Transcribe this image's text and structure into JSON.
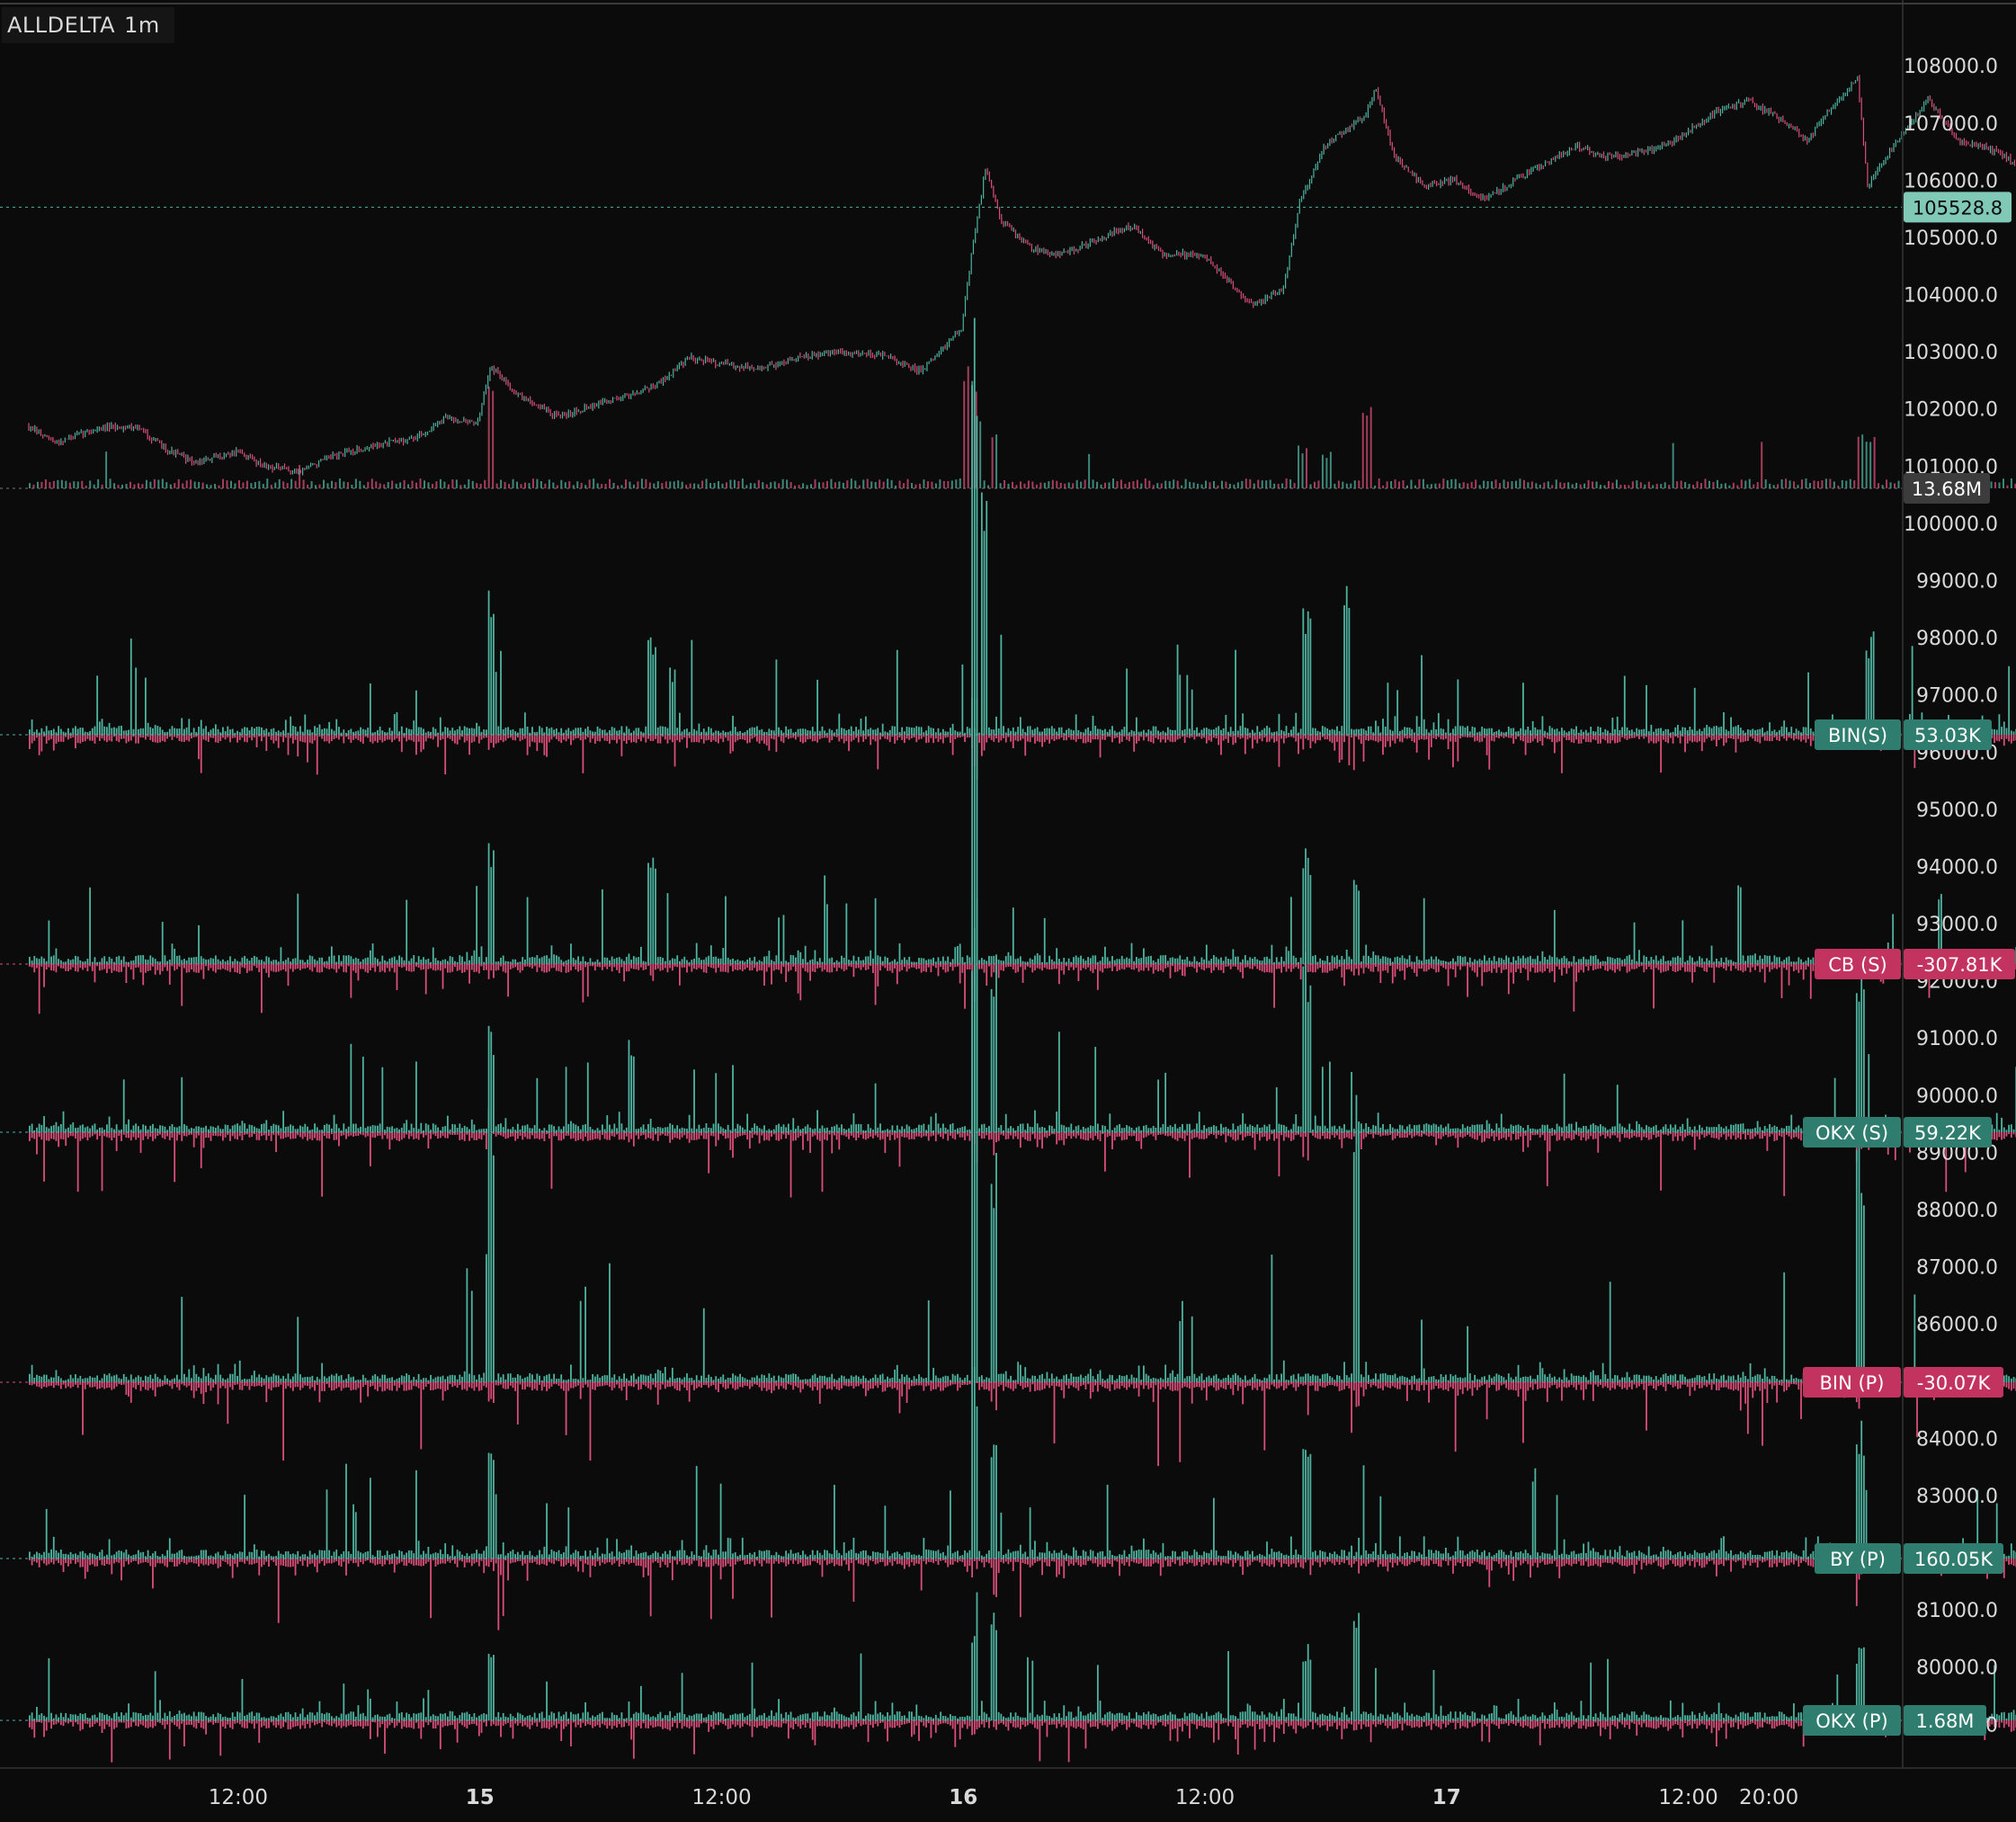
{
  "header": {
    "symbol": "ALLDELTA",
    "interval": "1m"
  },
  "colors": {
    "background": "#0b0b0b",
    "up": "#4fb3a0",
    "down": "#d94f7a",
    "volume": "#8a8a8a",
    "axis_text": "#d9d9d9",
    "grid_line": "#2a2a2a",
    "tag_green": "#2f7d6e",
    "tag_red": "#c2335f"
  },
  "chart_data": {
    "type": "candlestick",
    "title": "",
    "x_axis": {
      "ticks": [
        "12:00",
        "15",
        "12:00",
        "16",
        "12:00",
        "17",
        "12:00",
        "20:00"
      ],
      "bold_ticks": [
        "15",
        "16",
        "17"
      ],
      "tick_hours": [
        12,
        24,
        36,
        48,
        60,
        72,
        84,
        88
      ],
      "range_hours": [
        1.6,
        89.6
      ]
    },
    "y_axis": {
      "ticks": [
        "108000.0",
        "107000.0",
        "106000.0",
        "105000.0",
        "104000.0",
        "103000.0",
        "102000.0",
        "101000.0",
        "100000.0",
        "99000.0",
        "98000.0",
        "97000.0",
        "96000.0",
        "95000.0",
        "94000.0",
        "93000.0",
        "92000.0",
        "91000.0",
        "90000.0",
        "89000.0",
        "88000.0",
        "87000.0",
        "86000.0",
        "85000.0",
        "84000.0",
        "83000.0",
        "82000.0",
        "81000.0",
        "80000.0",
        "79000.0"
      ],
      "range": [
        78800,
        108270
      ]
    },
    "price": {
      "last": "105528.8",
      "last_value": 105528.8,
      "close_path": [
        [
          1.6,
          101700
        ],
        [
          3,
          101400
        ],
        [
          5,
          101650
        ],
        [
          7,
          101700
        ],
        [
          8.5,
          101300
        ],
        [
          10,
          101050
        ],
        [
          12,
          101250
        ],
        [
          13.5,
          101000
        ],
        [
          15,
          100900
        ],
        [
          17,
          101200
        ],
        [
          19.5,
          101400
        ],
        [
          21,
          101500
        ],
        [
          22.5,
          101850
        ],
        [
          24,
          101750
        ],
        [
          24.6,
          102750
        ],
        [
          26,
          102250
        ],
        [
          28,
          101850
        ],
        [
          29.5,
          102050
        ],
        [
          31.5,
          102250
        ],
        [
          33,
          102450
        ],
        [
          34.5,
          102900
        ],
        [
          36,
          102800
        ],
        [
          38,
          102700
        ],
        [
          40,
          102900
        ],
        [
          42,
          103000
        ],
        [
          44,
          102950
        ],
        [
          46,
          102650
        ],
        [
          48,
          103400
        ],
        [
          48.5,
          104700
        ],
        [
          49.2,
          106200
        ],
        [
          50,
          105300
        ],
        [
          51.5,
          104800
        ],
        [
          53,
          104700
        ],
        [
          55,
          105000
        ],
        [
          56.5,
          105200
        ],
        [
          58,
          104700
        ],
        [
          60,
          104700
        ],
        [
          61.5,
          104150
        ],
        [
          62.5,
          103800
        ],
        [
          64,
          104100
        ],
        [
          64.8,
          105600
        ],
        [
          66,
          106600
        ],
        [
          68,
          107100
        ],
        [
          68.6,
          107600
        ],
        [
          69.5,
          106400
        ],
        [
          71,
          105900
        ],
        [
          72.5,
          106000
        ],
        [
          74,
          105650
        ],
        [
          75.5,
          106000
        ],
        [
          77,
          106300
        ],
        [
          78.5,
          106600
        ],
        [
          80,
          106400
        ],
        [
          82,
          106500
        ],
        [
          83.5,
          106700
        ],
        [
          85.5,
          107200
        ],
        [
          87,
          107400
        ],
        [
          88.5,
          107100
        ],
        [
          90,
          106700
        ],
        [
          91.5,
          107400
        ],
        [
          92.5,
          107800
        ],
        [
          93,
          105900
        ],
        [
          94.5,
          106700
        ],
        [
          96,
          107400
        ],
        [
          97.5,
          106700
        ],
        [
          99.5,
          106500
        ],
        [
          101,
          106100
        ],
        [
          102,
          105850
        ],
        [
          103.5,
          106250
        ],
        [
          105,
          106150
        ],
        [
          105.8,
          105100
        ],
        [
          106.5,
          105500
        ]
      ]
    },
    "volume": {
      "label": "13.68M"
    },
    "delta_series": [
      {
        "name": "BIN(S)",
        "value": "53.03K",
        "sign": "positive",
        "spikes": [
          [
            48.5,
            12
          ],
          [
            49,
            7
          ],
          [
            65,
            4
          ],
          [
            67,
            5
          ],
          [
            24.5,
            4
          ],
          [
            32.5,
            3
          ],
          [
            33.5,
            2
          ],
          [
            93,
            3
          ]
        ]
      },
      {
        "name": "CB (S)",
        "value": "-307.81K",
        "sign": "negative",
        "spikes": [
          [
            48.5,
            10
          ],
          [
            24.5,
            4
          ],
          [
            32.5,
            4
          ],
          [
            65,
            4
          ],
          [
            67.5,
            3
          ]
        ]
      },
      {
        "name": "OKX (S)",
        "value": "59.22K",
        "sign": "positive",
        "spikes": [
          [
            48.5,
            6
          ],
          [
            49.5,
            5
          ],
          [
            24.5,
            3
          ],
          [
            31.5,
            3
          ],
          [
            65,
            5
          ],
          [
            92.5,
            5
          ]
        ]
      },
      {
        "name": "BIN (P)",
        "value": "-30.07K",
        "sign": "negative",
        "spikes": [
          [
            48.5,
            10
          ],
          [
            49.5,
            5
          ],
          [
            24.5,
            6
          ],
          [
            67.5,
            6
          ],
          [
            92.5,
            5
          ]
        ]
      },
      {
        "name": "BY (P)",
        "value": "160.05K",
        "sign": "positive",
        "spikes": [
          [
            48.5,
            6
          ],
          [
            49.5,
            4
          ],
          [
            24.5,
            3
          ],
          [
            65,
            4
          ],
          [
            92.5,
            4
          ]
        ]
      },
      {
        "name": "OKX (P)",
        "value": "1.68M",
        "sign": "positive",
        "spikes": [
          [
            48.5,
            4
          ],
          [
            49.5,
            4
          ],
          [
            24.5,
            3
          ],
          [
            65,
            3
          ],
          [
            67.5,
            4
          ],
          [
            92.5,
            3
          ]
        ]
      }
    ]
  }
}
